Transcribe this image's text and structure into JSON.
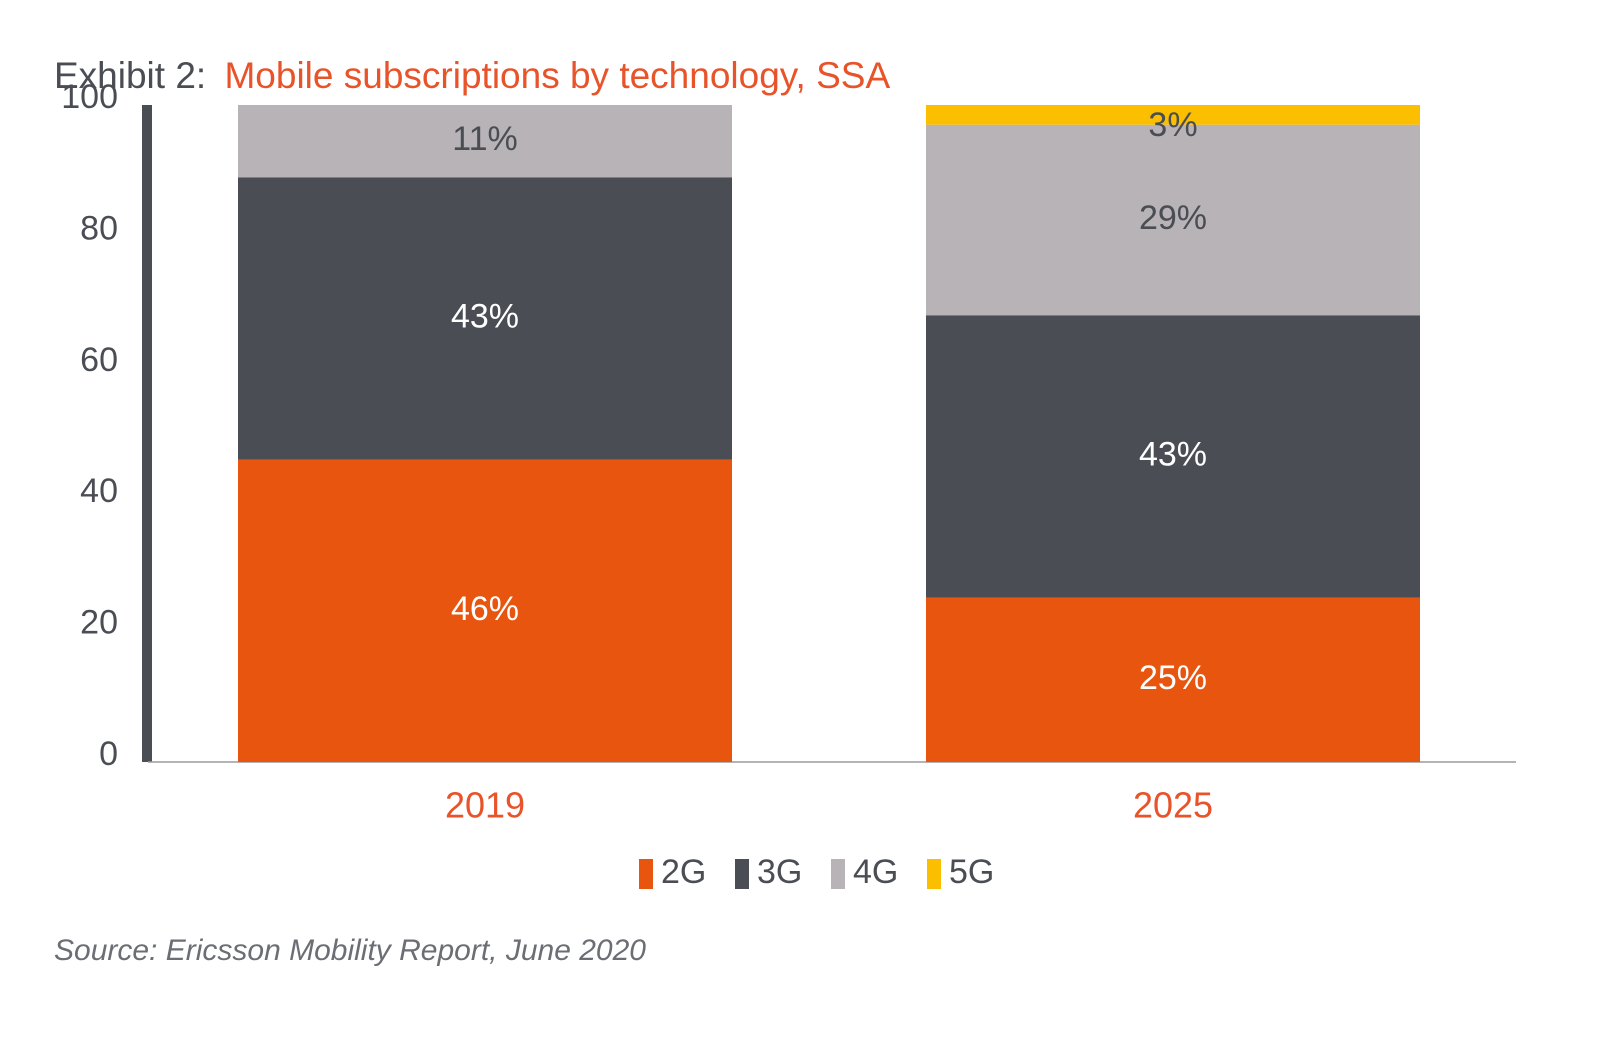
{
  "title": {
    "prefix": "Exhibit 2:",
    "main": "Mobile subscriptions by technology, SSA"
  },
  "source": "Source: Ericsson Mobility Report, June 2020",
  "colors": {
    "2G": "#e8550f",
    "3G": "#4a4d54",
    "4G": "#b7b3b6",
    "5G": "#fbbf00",
    "axis": "#4a4d54",
    "accent_text": "#e8532a"
  },
  "chart_data": {
    "type": "bar",
    "stacked": true,
    "categories": [
      "2019",
      "2025"
    ],
    "ylim": [
      0,
      100
    ],
    "yticks": [
      "0",
      "20",
      "40",
      "60",
      "80",
      "100"
    ],
    "grid": false,
    "legend_position": "bottom",
    "series": [
      {
        "name": "2G",
        "values": [
          46,
          25
        ],
        "labels": [
          "46%",
          "25%"
        ]
      },
      {
        "name": "3G",
        "values": [
          43,
          43
        ],
        "labels": [
          "43%",
          "43%"
        ]
      },
      {
        "name": "4G",
        "values": [
          11,
          29
        ],
        "labels": [
          "11%",
          "29%"
        ]
      },
      {
        "name": "5G",
        "values": [
          0,
          3
        ],
        "labels": [
          "",
          "3%"
        ]
      }
    ]
  }
}
